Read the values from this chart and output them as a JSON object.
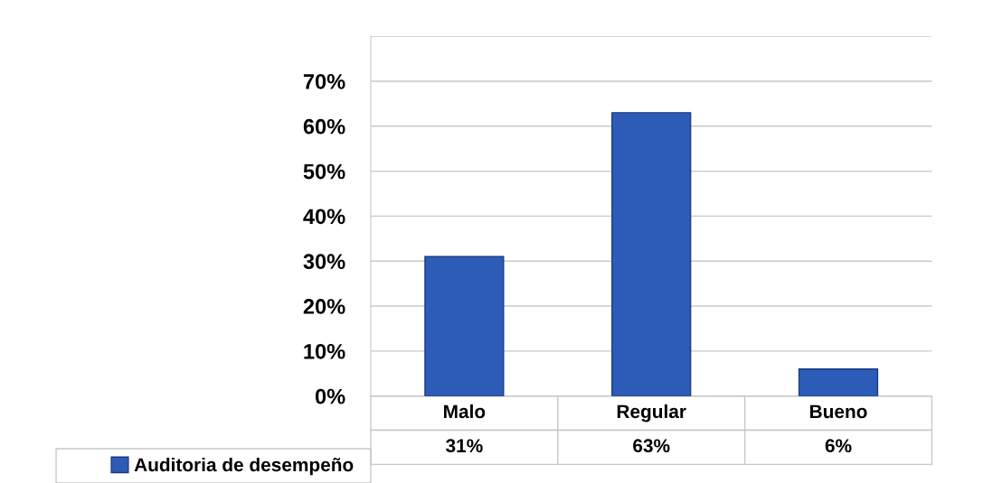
{
  "chart_data": {
    "type": "bar",
    "categories": [
      "Malo",
      "Regular",
      "Bueno"
    ],
    "series": [
      {
        "name": "Auditoria de desempeño",
        "color": "#2d5cb8",
        "values": [
          31,
          63,
          6
        ],
        "value_labels": [
          "31%",
          "63%",
          "6%"
        ]
      }
    ],
    "ylim": [
      0,
      80
    ],
    "yticks": [
      {
        "value": 0,
        "label": "0%"
      },
      {
        "value": 10,
        "label": "10%"
      },
      {
        "value": 20,
        "label": "20%"
      },
      {
        "value": 30,
        "label": "30%"
      },
      {
        "value": 40,
        "label": "40%"
      },
      {
        "value": 50,
        "label": "50%"
      },
      {
        "value": 60,
        "label": "60%"
      },
      {
        "value": 70,
        "label": "70%"
      },
      {
        "value": 80,
        "label": null
      }
    ],
    "grid": "y",
    "legend": "bottom left"
  }
}
